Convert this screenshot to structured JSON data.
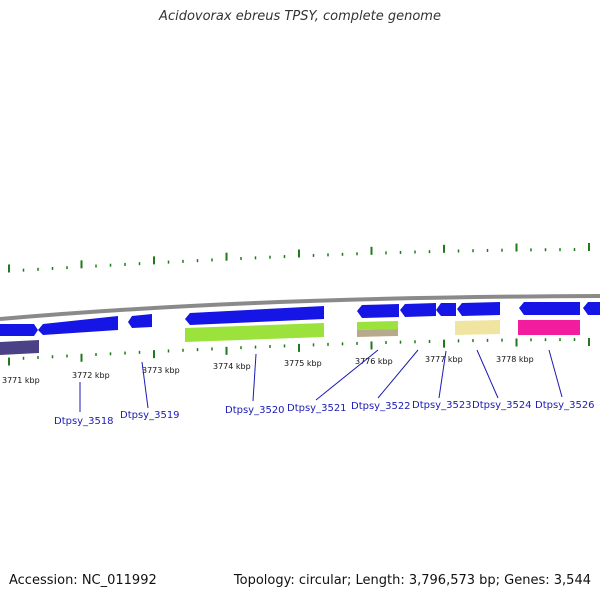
{
  "title": "Acidovorax ebreus TPSY, complete genome",
  "footer": {
    "accession": "Accession: NC_011992",
    "summary": "Topology: circular; Length: 3,796,573 bp; Genes: 3,544"
  },
  "colors": {
    "backbone": "#8a8a8a",
    "cds_blue": "#1515e6",
    "tick_green": "#1f7a1f",
    "lime": "#9be33c",
    "tan": "#b7a98c",
    "pale_yellow": "#efe4a0",
    "magenta": "#f21c9e",
    "slate": "#4a4186",
    "label_blue": "#1b1bb5"
  },
  "kbp_labels": [
    "3771 kbp",
    "3772 kbp",
    "3773 kbp",
    "3774 kbp",
    "3775 kbp",
    "3776 kbp",
    "3777 kbp",
    "3778 kbp"
  ],
  "genes": [
    {
      "label": "Dtpsy_3518"
    },
    {
      "label": "Dtpsy_3519"
    },
    {
      "label": "Dtpsy_3520"
    },
    {
      "label": "Dtpsy_3521"
    },
    {
      "label": "Dtpsy_3522"
    },
    {
      "label": "Dtpsy_3523"
    },
    {
      "label": "Dtpsy_3524"
    },
    {
      "label": "Dtpsy_3526"
    }
  ]
}
